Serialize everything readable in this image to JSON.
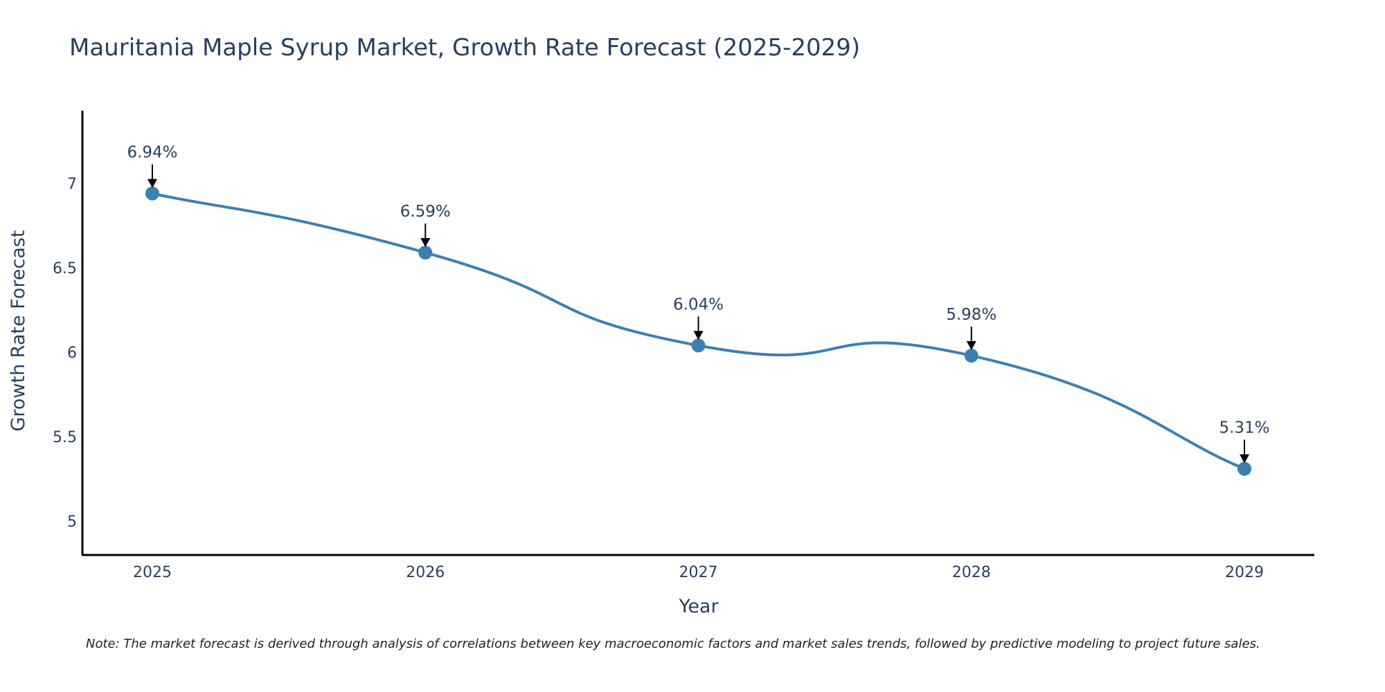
{
  "chart_data": {
    "type": "line",
    "title": "Mauritania Maple Syrup Market, Growth Rate Forecast (2025-2029)",
    "xlabel": "Year",
    "ylabel": "Growth Rate Forecast",
    "categories": [
      "2025",
      "2026",
      "2027",
      "2028",
      "2029"
    ],
    "values": [
      6.94,
      6.59,
      6.04,
      5.98,
      5.31
    ],
    "data_labels": [
      "6.94%",
      "6.59%",
      "6.04%",
      "5.98%",
      "5.31%"
    ],
    "y_ticks": [
      5,
      5.5,
      6,
      6.5,
      7
    ],
    "y_tick_labels": [
      "5",
      "5.5",
      "6",
      "6.5",
      "7"
    ],
    "ylim": [
      4.8,
      7.43
    ],
    "grid": false,
    "line_shape": "spline",
    "line_color": "#3d7fb1",
    "marker_color": "#3d7fb1",
    "axis_color": "#000000"
  },
  "note": "Note: The market forecast is derived through analysis of correlations between key macroeconomic factors and market sales trends, followed by predictive modeling to project future sales."
}
